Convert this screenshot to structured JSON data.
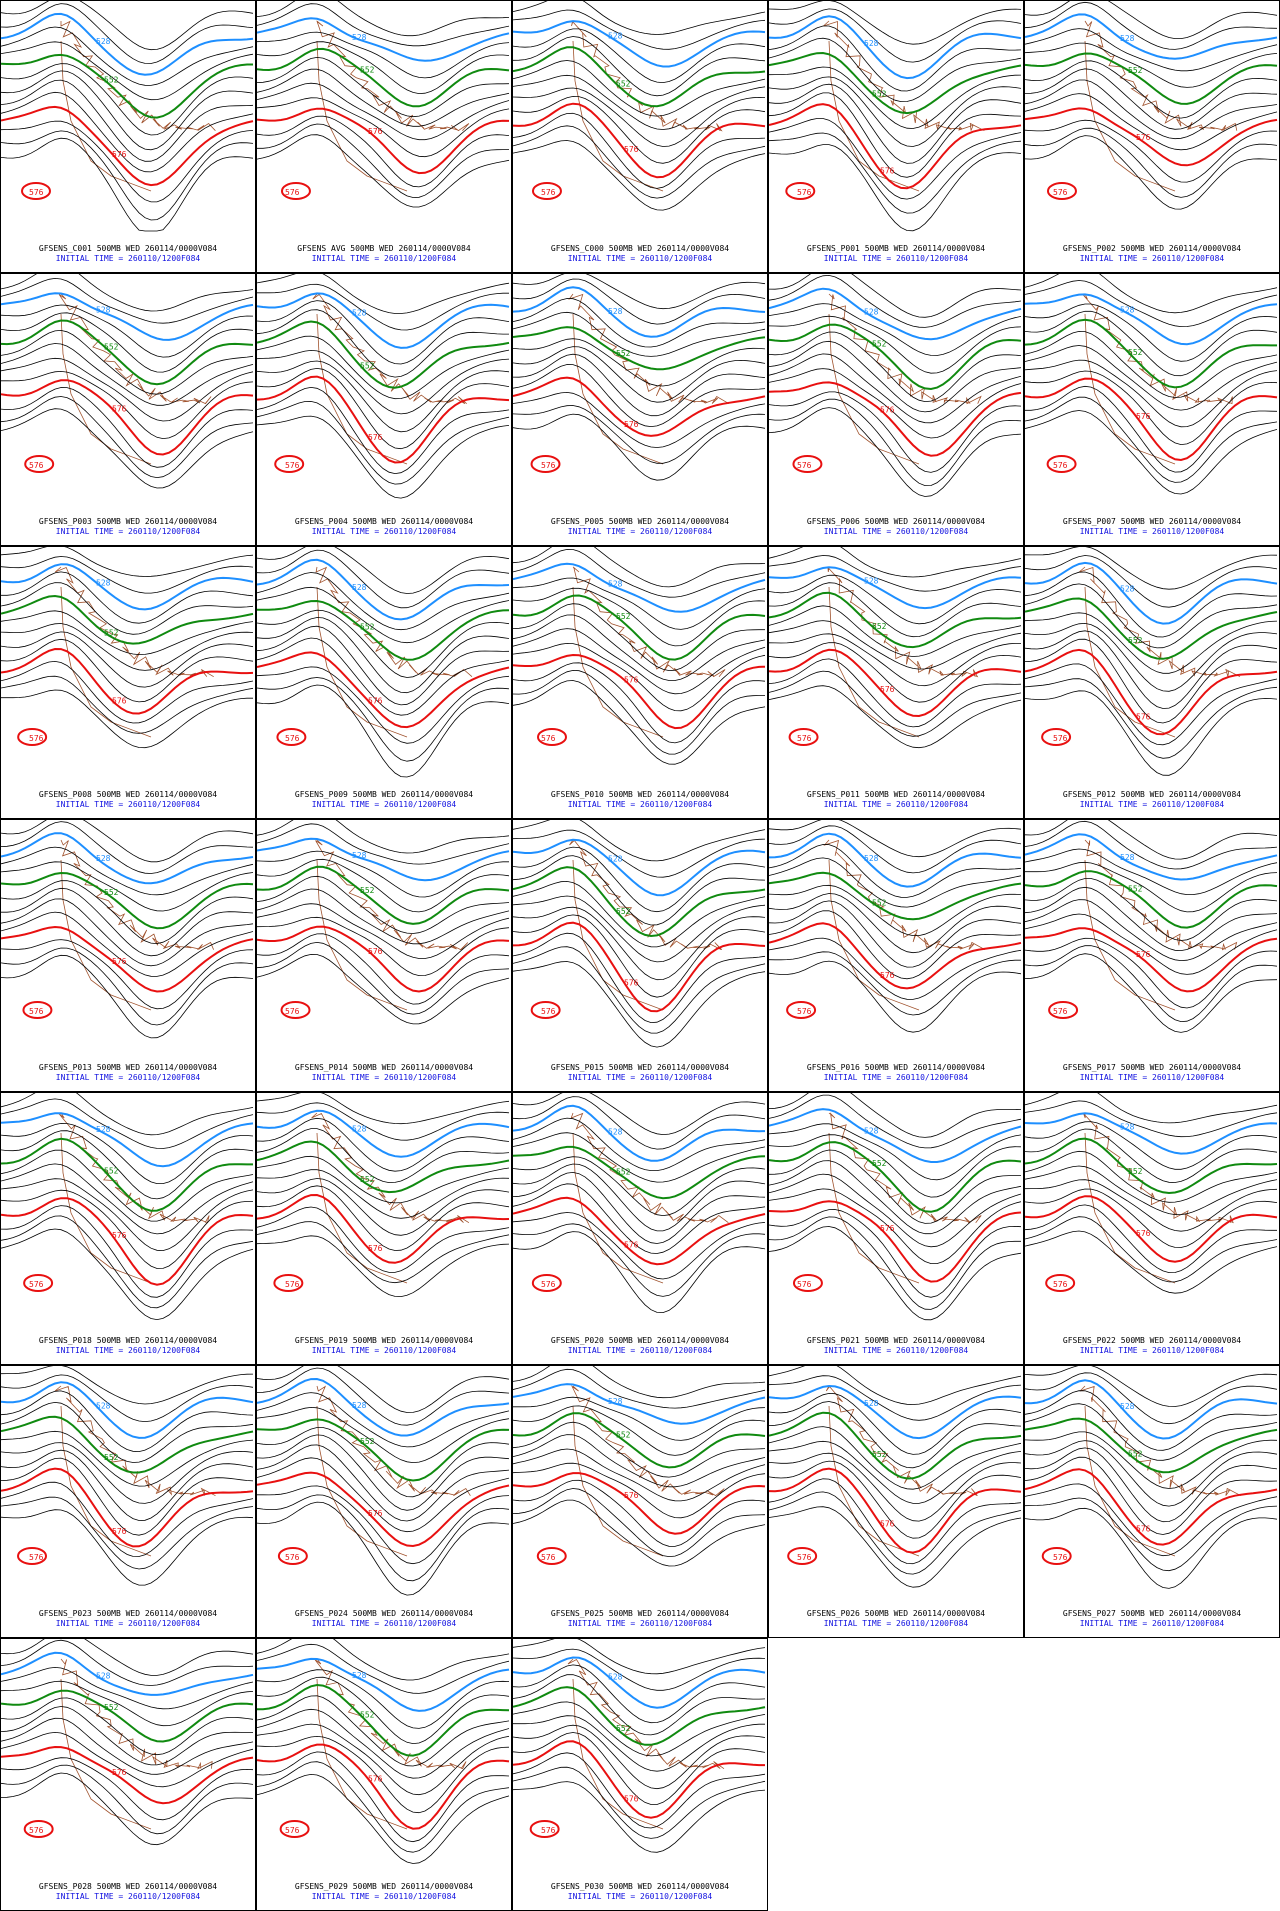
{
  "panels": [
    {
      "title": "GFSENS_C001 500MB WED 260114/0000V084",
      "subtitle": "INITIAL TIME = 260110/1200F084"
    },
    {
      "title": "GFSENS AVG 500MB WED 260114/0000V084",
      "subtitle": "INITIAL TIME = 260110/1200F084"
    },
    {
      "title": "GFSENS_C000 500MB WED 260114/0000V084",
      "subtitle": "INITIAL TIME = 260110/1200F084"
    },
    {
      "title": "GFSENS_P001 500MB WED 260114/0000V084",
      "subtitle": "INITIAL TIME = 260110/1200F084"
    },
    {
      "title": "GFSENS_P002 500MB WED 260114/0000V084",
      "subtitle": "INITIAL TIME = 260110/1200F084"
    },
    {
      "title": "GFSENS_P003 500MB WED 260114/0000V084",
      "subtitle": "INITIAL TIME = 260110/1200F084"
    },
    {
      "title": "GFSENS_P004 500MB WED 260114/0000V084",
      "subtitle": "INITIAL TIME = 260110/1200F084"
    },
    {
      "title": "GFSENS_P005 500MB WED 260114/0000V084",
      "subtitle": "INITIAL TIME = 260110/1200F084"
    },
    {
      "title": "GFSENS_P006 500MB WED 260114/0000V084",
      "subtitle": "INITIAL TIME = 260110/1200F084"
    },
    {
      "title": "GFSENS_P007 500MB WED 260114/0000V084",
      "subtitle": "INITIAL TIME = 260110/1200F084"
    },
    {
      "title": "GFSENS_P008 500MB WED 260114/0000V084",
      "subtitle": "INITIAL TIME = 260110/1200F084"
    },
    {
      "title": "GFSENS_P009 500MB WED 260114/0000V084",
      "subtitle": "INITIAL TIME = 260110/1200F084"
    },
    {
      "title": "GFSENS_P010 500MB WED 260114/0000V084",
      "subtitle": "INITIAL TIME = 260110/1200F084"
    },
    {
      "title": "GFSENS_P011 500MB WED 260114/0000V084",
      "subtitle": "INITIAL TIME = 260110/1200F084"
    },
    {
      "title": "GFSENS_P012 500MB WED 260114/0000V084",
      "subtitle": "INITIAL TIME = 260110/1200F084"
    },
    {
      "title": "GFSENS_P013 500MB WED 260114/0000V084",
      "subtitle": "INITIAL TIME = 260110/1200F084"
    },
    {
      "title": "GFSENS_P014 500MB WED 260114/0000V084",
      "subtitle": "INITIAL TIME = 260110/1200F084"
    },
    {
      "title": "GFSENS_P015 500MB WED 260114/0000V084",
      "subtitle": "INITIAL TIME = 260110/1200F084"
    },
    {
      "title": "GFSENS_P016 500MB WED 260114/0000V084",
      "subtitle": "INITIAL TIME = 260110/1200F084"
    },
    {
      "title": "GFSENS_P017 500MB WED 260114/0000V084",
      "subtitle": "INITIAL TIME = 260110/1200F084"
    },
    {
      "title": "GFSENS_P018 500MB WED 260114/0000V084",
      "subtitle": "INITIAL TIME = 260110/1200F084"
    },
    {
      "title": "GFSENS_P019 500MB WED 260114/0000V084",
      "subtitle": "INITIAL TIME = 260110/1200F084"
    },
    {
      "title": "GFSENS_P020 500MB WED 260114/0000V084",
      "subtitle": "INITIAL TIME = 260110/1200F084"
    },
    {
      "title": "GFSENS_P021 500MB WED 260114/0000V084",
      "subtitle": "INITIAL TIME = 260110/1200F084"
    },
    {
      "title": "GFSENS_P022 500MB WED 260114/0000V084",
      "subtitle": "INITIAL TIME = 260110/1200F084"
    },
    {
      "title": "GFSENS_P023 500MB WED 260114/0000V084",
      "subtitle": "INITIAL TIME = 260110/1200F084"
    },
    {
      "title": "GFSENS_P024 500MB WED 260114/0000V084",
      "subtitle": "INITIAL TIME = 260110/1200F084"
    },
    {
      "title": "GFSENS_P025 500MB WED 260114/0000V084",
      "subtitle": "INITIAL TIME = 260110/1200F084"
    },
    {
      "title": "GFSENS_P026 500MB WED 260114/0000V084",
      "subtitle": "INITIAL TIME = 260110/1200F084"
    },
    {
      "title": "GFSENS_P027 500MB WED 260114/0000V084",
      "subtitle": "INITIAL TIME = 260110/1200F084"
    },
    {
      "title": "GFSENS_P028 500MB WED 260114/0000V084",
      "subtitle": "INITIAL TIME = 260110/1200F084"
    },
    {
      "title": "GFSENS_P029 500MB WED 260114/0000V084",
      "subtitle": "INITIAL TIME = 260110/1200F084"
    },
    {
      "title": "GFSENS_P030 500MB WED 260114/0000V084",
      "subtitle": "INITIAL TIME = 260110/1200F084"
    }
  ],
  "contours": [
    {
      "label": "528",
      "color": "#1e8fff"
    },
    {
      "label": "552",
      "color": "#108a10"
    },
    {
      "label": "576",
      "color": "#e81010"
    }
  ]
}
